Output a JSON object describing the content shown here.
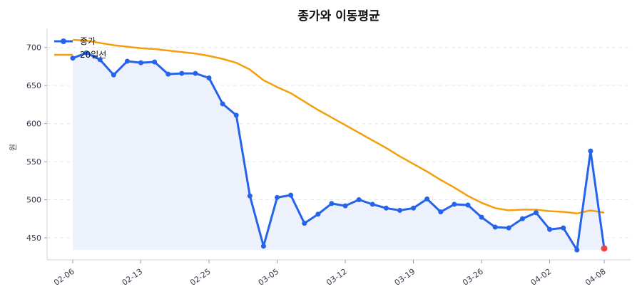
{
  "chart_data": {
    "type": "line",
    "title": "종가와 이동평균",
    "xlabel": "",
    "ylabel": "원",
    "ylim": [
      421,
      725
    ],
    "yticks": [
      450,
      500,
      550,
      600,
      650,
      700
    ],
    "grid": "horizontal dashed",
    "legend_position": "top-left",
    "x_tick_labels": [
      {
        "index": 0,
        "label": "02-06"
      },
      {
        "index": 5,
        "label": "02-13"
      },
      {
        "index": 10,
        "label": "02-25"
      },
      {
        "index": 15,
        "label": "03-05"
      },
      {
        "index": 20,
        "label": "03-12"
      },
      {
        "index": 25,
        "label": "03-19"
      },
      {
        "index": 30,
        "label": "03-26"
      },
      {
        "index": 35,
        "label": "04-02"
      },
      {
        "index": 39,
        "label": "04-08"
      }
    ],
    "series": [
      {
        "name": "종가",
        "color": "#2563eb",
        "marker": "circle",
        "fill": "#eaf0fb",
        "values": [
          686,
          693,
          684,
          664,
          682,
          680,
          681,
          665,
          666,
          666,
          660,
          626,
          611,
          505,
          439,
          503,
          506,
          469,
          481,
          495,
          492,
          500,
          494,
          489,
          486,
          489,
          501,
          484,
          494,
          493,
          477,
          464,
          463,
          475,
          483,
          461,
          463,
          434,
          564,
          436
        ]
      },
      {
        "name": "20일선",
        "color": "#f59e0b",
        "values": [
          710,
          709,
          706,
          703,
          701,
          699,
          698,
          696,
          694,
          692,
          689,
          685,
          680,
          671,
          657,
          648,
          640,
          629,
          618,
          608,
          598,
          588,
          578,
          568,
          557,
          547,
          537,
          526,
          516,
          505,
          496,
          489,
          486,
          487,
          487,
          485,
          484,
          482,
          486,
          483
        ]
      }
    ],
    "last_point_color": "#ef4444"
  }
}
